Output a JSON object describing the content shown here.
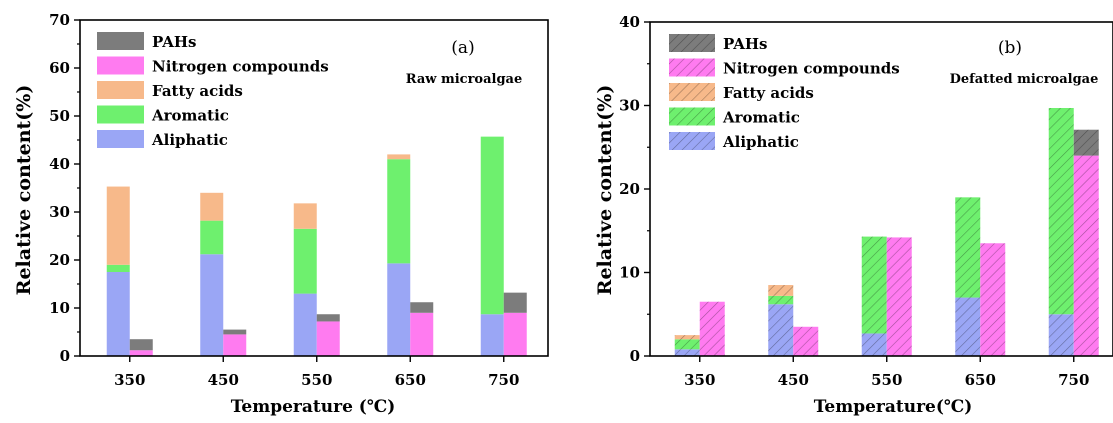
{
  "chart_data": [
    {
      "type": "bar",
      "panel": "(a)",
      "annotation": "Raw microalgae",
      "xlabel": "Temperature (℃)",
      "ylabel": "Relative content(%)",
      "ylim": [
        0,
        70
      ],
      "yticks": [
        "0",
        "10",
        "20",
        "30",
        "40",
        "50",
        "60",
        "70"
      ],
      "categories": [
        "350",
        "450",
        "550",
        "650",
        "750"
      ],
      "hatched": false,
      "stacks": [
        {
          "bar": "left",
          "series": [
            {
              "name": "Aliphatic",
              "color": "#9aa6f5",
              "values": [
                17.5,
                21.2,
                13.0,
                19.3,
                8.7
              ]
            },
            {
              "name": "Aromatic",
              "color": "#6ef06e",
              "values": [
                1.5,
                7.0,
                13.5,
                21.7,
                37.0
              ]
            },
            {
              "name": "Fatty acids",
              "color": "#f7b98a",
              "values": [
                16.3,
                5.8,
                5.3,
                1.0,
                0.0
              ]
            }
          ]
        },
        {
          "bar": "right",
          "series": [
            {
              "name": "Nitrogen compounds",
              "color": "#ff7bf0",
              "values": [
                1.2,
                4.5,
                7.2,
                9.0,
                9.0
              ]
            },
            {
              "name": "PAHs",
              "color": "#7c7c7c",
              "values": [
                2.3,
                1.0,
                1.5,
                2.2,
                4.2
              ]
            }
          ]
        }
      ],
      "legend": [
        "PAHs",
        "Nitrogen compounds",
        "Fatty acids",
        "Aromatic",
        "Aliphatic"
      ],
      "legend_position": "top-left"
    },
    {
      "type": "bar",
      "panel": "(b)",
      "annotation": "Defatted microalgae",
      "xlabel": "Temperature(℃)",
      "ylabel": "Relative content(%)",
      "ylim": [
        0,
        40
      ],
      "yticks": [
        "0",
        "10",
        "20",
        "30",
        "40"
      ],
      "categories": [
        "350",
        "450",
        "550",
        "650",
        "750"
      ],
      "hatched": true,
      "stacks": [
        {
          "bar": "left",
          "series": [
            {
              "name": "Aliphatic",
              "color": "#9aa6f5",
              "values": [
                0.8,
                6.2,
                2.7,
                7.0,
                5.0
              ]
            },
            {
              "name": "Aromatic",
              "color": "#6ef06e",
              "values": [
                1.2,
                1.0,
                11.6,
                12.0,
                24.7
              ]
            },
            {
              "name": "Fatty acids",
              "color": "#f7b98a",
              "values": [
                0.5,
                1.3,
                0.0,
                0.0,
                0.0
              ]
            }
          ]
        },
        {
          "bar": "right",
          "series": [
            {
              "name": "Nitrogen compounds",
              "color": "#ff7bf0",
              "values": [
                6.5,
                3.5,
                14.2,
                13.5,
                24.0
              ]
            },
            {
              "name": "PAHs",
              "color": "#7c7c7c",
              "values": [
                0.0,
                0.0,
                0.0,
                0.0,
                3.1
              ]
            }
          ]
        }
      ],
      "legend": [
        "PAHs",
        "Nitrogen compounds",
        "Fatty acids",
        "Aromatic",
        "Aliphatic"
      ],
      "legend_position": "top-left"
    }
  ]
}
